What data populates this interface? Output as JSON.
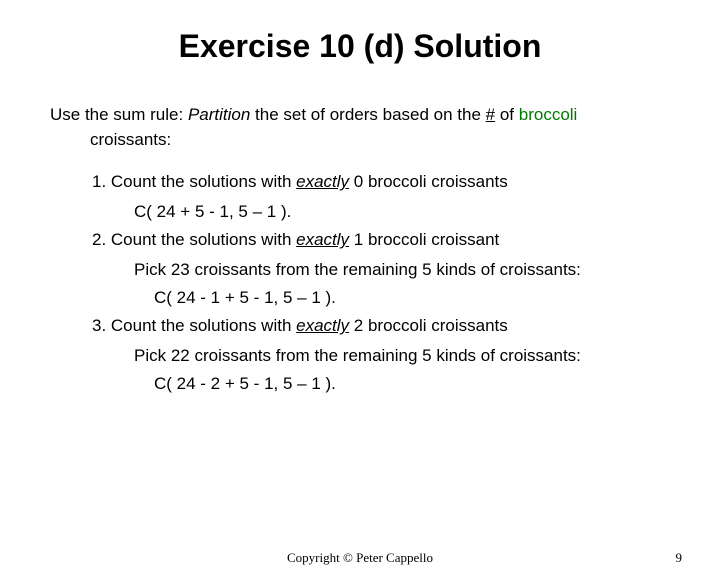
{
  "title": "Exercise 10 (d) Solution",
  "intro": {
    "lead": "Use the sum rule: ",
    "partition": "Partition",
    "mid": " the set of orders based on the ",
    "hash": "#",
    "of": " of ",
    "broccoli": "broccoli",
    "line2": "croissants:"
  },
  "items": [
    {
      "num": "1.   ",
      "pre": "Count the solutions with ",
      "exactly": "exactly",
      "post": " 0 broccoli croissants",
      "sub": "C( 24 + 5 - 1, 5 – 1 )."
    },
    {
      "num": "2. ",
      "pre": "Count the solutions with ",
      "exactly": "exactly",
      "post": " 1 broccoli croissant",
      "sub": "Pick 23 croissants from the remaining 5 kinds of croissants:",
      "subsub": "C( 24 - 1 + 5 - 1, 5 – 1 )."
    },
    {
      "num": "3. ",
      "pre": "Count the solutions with ",
      "exactly": "exactly",
      "post": " 2 broccoli croissants",
      "sub": "Pick 22 croissants from the remaining 5 kinds of croissants:",
      "subsub": "C( 24 - 2 + 5 - 1, 5 – 1 )."
    }
  ],
  "footer": {
    "copyright": "Copyright © Peter Cappello",
    "page": "9"
  }
}
